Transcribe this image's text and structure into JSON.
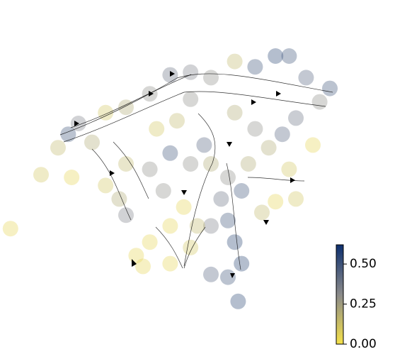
{
  "chart_data": {
    "type": "scatter",
    "x": [
      1,
      18,
      21,
      15,
      10,
      19,
      25,
      29,
      35,
      42,
      48,
      54,
      60,
      67,
      73,
      79,
      83,
      88,
      95,
      92,
      85,
      81,
      77,
      90,
      83,
      85,
      79,
      75,
      69,
      65,
      60,
      58,
      54,
      48,
      42,
      35,
      29,
      33,
      35,
      46,
      52,
      48,
      42,
      38,
      40,
      48,
      54,
      60,
      65,
      67,
      69,
      65,
      68,
      60,
      56,
      63,
      71,
      73,
      67,
      50,
      44,
      54
    ],
    "y": [
      31,
      66,
      70,
      61,
      51,
      50,
      63,
      74,
      76,
      81,
      88,
      89,
      87,
      93,
      91,
      95,
      95,
      87,
      83,
      78,
      72,
      66,
      61,
      62,
      53,
      42,
      41,
      37,
      45,
      50,
      55,
      62,
      55,
      59,
      53,
      55,
      47,
      42,
      36,
      45,
      39,
      32,
      26,
      21,
      17,
      18,
      24,
      32,
      34,
      26,
      18,
      13,
      4,
      14,
      32,
      42,
      55,
      68,
      74,
      71,
      68,
      79
    ],
    "values": [
      0.05,
      0.5,
      0.35,
      0.15,
      0.1,
      0.05,
      0.2,
      0.1,
      0.2,
      0.3,
      0.4,
      0.35,
      0.3,
      0.15,
      0.5,
      0.55,
      0.5,
      0.45,
      0.5,
      0.3,
      0.4,
      0.45,
      0.2,
      0.05,
      0.1,
      0.1,
      0.05,
      0.15,
      0.5,
      0.3,
      0.2,
      0.45,
      0.3,
      0.5,
      0.3,
      0.15,
      0.1,
      0.2,
      0.35,
      0.3,
      0.05,
      0.05,
      0.05,
      0.05,
      0.05,
      0.05,
      0.1,
      0.35,
      0.5,
      0.55,
      0.55,
      0.5,
      0.55,
      0.45,
      0.15,
      0.4,
      0.2,
      0.3,
      0.2,
      0.15,
      0.1,
      0.3
    ],
    "xlim": [
      0,
      100
    ],
    "ylim": [
      0,
      100
    ],
    "colormap": [
      "#f5e14a",
      "#8a8a8a",
      "#0d2f6e"
    ],
    "clim": [
      0,
      0.62
    ],
    "cticks": [
      {
        "value": 0,
        "label": "0.00"
      },
      {
        "value": 0.25,
        "label": "0.25"
      },
      {
        "value": 0.5,
        "label": "0.50"
      }
    ]
  }
}
